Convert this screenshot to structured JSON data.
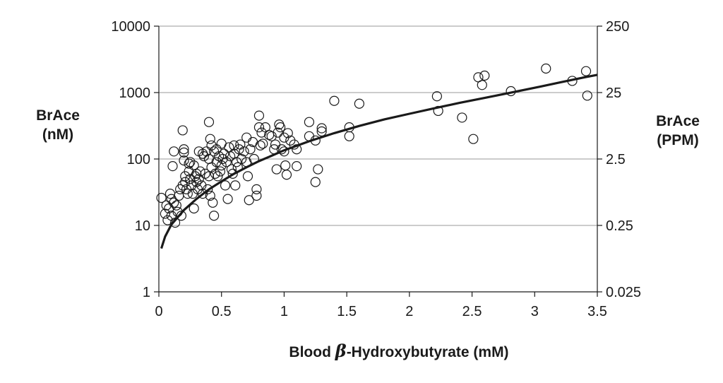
{
  "chart_data": {
    "type": "scatter",
    "xlabel": {
      "prefix": "Blood ",
      "symbol": "β",
      "suffix": "-Hydroxybutyrate (mM)"
    },
    "ylabel_left": [
      "BrAce",
      "(nM)"
    ],
    "ylabel_right": [
      "BrAce",
      "(PPM)"
    ],
    "xlim": [
      0,
      3.5
    ],
    "ylim": [
      1,
      10000
    ],
    "yscale": "log",
    "x_ticks": [
      {
        "value": 0,
        "label": "0"
      },
      {
        "value": 0.5,
        "label": "0.5"
      },
      {
        "value": 1,
        "label": "1"
      },
      {
        "value": 1.5,
        "label": "1.5"
      },
      {
        "value": 2,
        "label": "2"
      },
      {
        "value": 2.5,
        "label": "2.5"
      },
      {
        "value": 3,
        "label": "3"
      },
      {
        "value": 3.5,
        "label": "3.5"
      }
    ],
    "y_ticks_left": [
      {
        "value": 1,
        "label": "1"
      },
      {
        "value": 10,
        "label": "10"
      },
      {
        "value": 100,
        "label": "100"
      },
      {
        "value": 1000,
        "label": "1000"
      },
      {
        "value": 10000,
        "label": "10000"
      }
    ],
    "y_ticks_right": [
      {
        "value": 1,
        "label": "0.025"
      },
      {
        "value": 10,
        "label": "0.25"
      },
      {
        "value": 100,
        "label": "2.5"
      },
      {
        "value": 1000,
        "label": "25"
      },
      {
        "value": 10000,
        "label": "250"
      }
    ],
    "grid": "horizontal",
    "series": [
      {
        "kind": "scatter",
        "marker": "open-circle",
        "color": "#1a1a1a",
        "points": [
          [
            0.02,
            26
          ],
          [
            0.05,
            15
          ],
          [
            0.06,
            20
          ],
          [
            0.07,
            12
          ],
          [
            0.08,
            18
          ],
          [
            0.09,
            30
          ],
          [
            0.1,
            14
          ],
          [
            0.1,
            25
          ],
          [
            0.11,
            78
          ],
          [
            0.12,
            130
          ],
          [
            0.12,
            22
          ],
          [
            0.13,
            11
          ],
          [
            0.14,
            20
          ],
          [
            0.15,
            16
          ],
          [
            0.16,
            28
          ],
          [
            0.17,
            35
          ],
          [
            0.18,
            14
          ],
          [
            0.19,
            270
          ],
          [
            0.19,
            40
          ],
          [
            0.2,
            140
          ],
          [
            0.2,
            125
          ],
          [
            0.2,
            95
          ],
          [
            0.21,
            55
          ],
          [
            0.21,
            45
          ],
          [
            0.22,
            35
          ],
          [
            0.23,
            30
          ],
          [
            0.24,
            85
          ],
          [
            0.24,
            65
          ],
          [
            0.25,
            90
          ],
          [
            0.25,
            50
          ],
          [
            0.26,
            40
          ],
          [
            0.27,
            30
          ],
          [
            0.28,
            18
          ],
          [
            0.28,
            80
          ],
          [
            0.29,
            55
          ],
          [
            0.3,
            60
          ],
          [
            0.3,
            45
          ],
          [
            0.31,
            35
          ],
          [
            0.32,
            130
          ],
          [
            0.32,
            50
          ],
          [
            0.33,
            65
          ],
          [
            0.34,
            40
          ],
          [
            0.35,
            120
          ],
          [
            0.35,
            30
          ],
          [
            0.36,
            110
          ],
          [
            0.37,
            60
          ],
          [
            0.38,
            130
          ],
          [
            0.39,
            35
          ],
          [
            0.4,
            360
          ],
          [
            0.4,
            100
          ],
          [
            0.4,
            55
          ],
          [
            0.41,
            200
          ],
          [
            0.41,
            28
          ],
          [
            0.42,
            160
          ],
          [
            0.42,
            75
          ],
          [
            0.43,
            22
          ],
          [
            0.44,
            130
          ],
          [
            0.44,
            14
          ],
          [
            0.45,
            60
          ],
          [
            0.46,
            140
          ],
          [
            0.46,
            90
          ],
          [
            0.47,
            55
          ],
          [
            0.48,
            110
          ],
          [
            0.49,
            65
          ],
          [
            0.5,
            170
          ],
          [
            0.5,
            80
          ],
          [
            0.51,
            100
          ],
          [
            0.52,
            120
          ],
          [
            0.53,
            40
          ],
          [
            0.54,
            90
          ],
          [
            0.55,
            25
          ],
          [
            0.56,
            150
          ],
          [
            0.57,
            110
          ],
          [
            0.58,
            70
          ],
          [
            0.59,
            60
          ],
          [
            0.6,
            160
          ],
          [
            0.6,
            120
          ],
          [
            0.61,
            40
          ],
          [
            0.62,
            90
          ],
          [
            0.63,
            75
          ],
          [
            0.64,
            140
          ],
          [
            0.65,
            165
          ],
          [
            0.66,
            100
          ],
          [
            0.68,
            130
          ],
          [
            0.7,
            210
          ],
          [
            0.7,
            90
          ],
          [
            0.71,
            55
          ],
          [
            0.72,
            24
          ],
          [
            0.73,
            140
          ],
          [
            0.75,
            180
          ],
          [
            0.76,
            100
          ],
          [
            0.78,
            35
          ],
          [
            0.78,
            28
          ],
          [
            0.8,
            300
          ],
          [
            0.8,
            450
          ],
          [
            0.81,
            160
          ],
          [
            0.82,
            250
          ],
          [
            0.83,
            170
          ],
          [
            0.85,
            300
          ],
          [
            0.88,
            230
          ],
          [
            0.9,
            220
          ],
          [
            0.92,
            140
          ],
          [
            0.93,
            165
          ],
          [
            0.94,
            70
          ],
          [
            0.95,
            250
          ],
          [
            0.96,
            330
          ],
          [
            0.97,
            300
          ],
          [
            0.98,
            140
          ],
          [
            1.0,
            210
          ],
          [
            1.0,
            130
          ],
          [
            1.01,
            80
          ],
          [
            1.02,
            58
          ],
          [
            1.03,
            245
          ],
          [
            1.05,
            190
          ],
          [
            1.08,
            165
          ],
          [
            1.1,
            78
          ],
          [
            1.1,
            140
          ],
          [
            1.2,
            360
          ],
          [
            1.2,
            220
          ],
          [
            1.25,
            190
          ],
          [
            1.25,
            45
          ],
          [
            1.27,
            70
          ],
          [
            1.3,
            290
          ],
          [
            1.3,
            260
          ],
          [
            1.4,
            750
          ],
          [
            1.52,
            300
          ],
          [
            1.52,
            220
          ],
          [
            1.6,
            680
          ],
          [
            2.22,
            880
          ],
          [
            2.23,
            530
          ],
          [
            2.42,
            420
          ],
          [
            2.51,
            200
          ],
          [
            2.55,
            1700
          ],
          [
            2.58,
            1300
          ],
          [
            2.6,
            1800
          ],
          [
            2.81,
            1050
          ],
          [
            3.09,
            2300
          ],
          [
            3.3,
            1500
          ],
          [
            3.41,
            2100
          ],
          [
            3.42,
            900
          ]
        ]
      },
      {
        "kind": "fit-line",
        "color": "#1a1a1a",
        "points": [
          [
            0.02,
            4.5
          ],
          [
            0.05,
            6.8
          ],
          [
            0.1,
            10.3
          ],
          [
            0.2,
            17
          ],
          [
            0.3,
            25
          ],
          [
            0.4,
            35
          ],
          [
            0.5,
            46
          ],
          [
            0.6,
            60
          ],
          [
            0.7,
            75
          ],
          [
            0.8,
            93
          ],
          [
            0.9,
            112
          ],
          [
            1.0,
            135
          ],
          [
            1.2,
            185
          ],
          [
            1.4,
            245
          ],
          [
            1.6,
            315
          ],
          [
            1.8,
            395
          ],
          [
            2.0,
            480
          ],
          [
            2.2,
            580
          ],
          [
            2.4,
            700
          ],
          [
            2.6,
            830
          ],
          [
            2.8,
            990
          ],
          [
            3.0,
            1180
          ],
          [
            3.2,
            1420
          ],
          [
            3.4,
            1700
          ],
          [
            3.5,
            1850
          ]
        ]
      }
    ]
  }
}
